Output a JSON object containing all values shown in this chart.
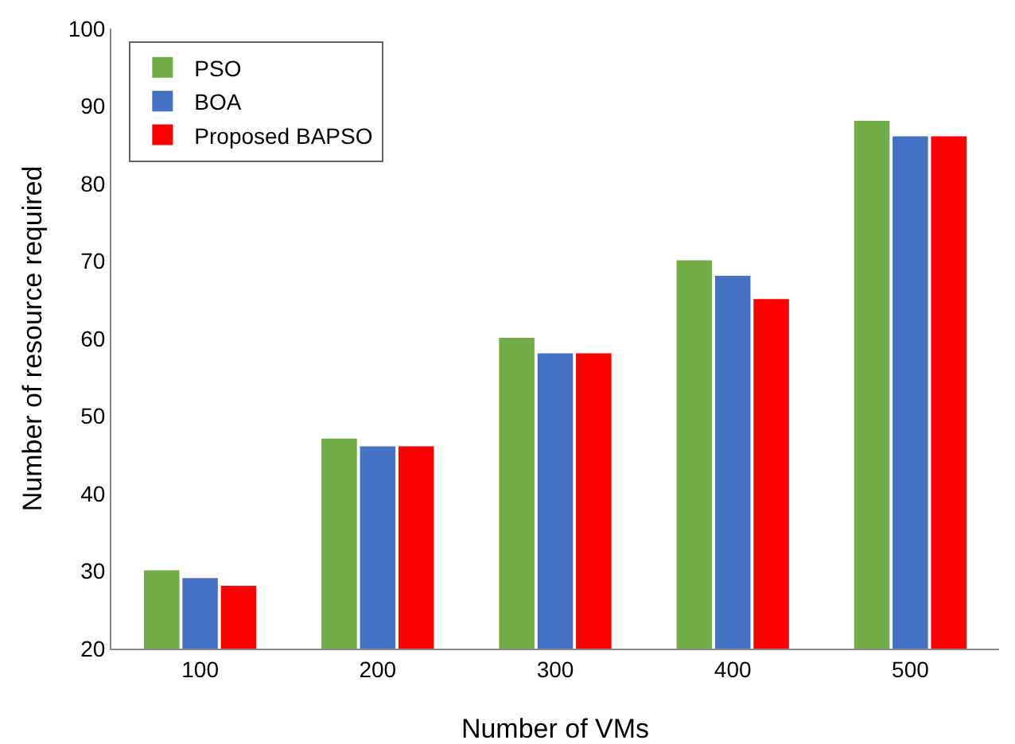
{
  "chart_data": {
    "type": "bar",
    "xlabel": "Number of VMs",
    "ylabel": "Number of resource required",
    "categories": [
      "100",
      "200",
      "300",
      "400",
      "500"
    ],
    "series": [
      {
        "name": "PSO",
        "color": "#70ad47",
        "values": [
          30,
          47,
          60,
          70,
          88
        ]
      },
      {
        "name": "BOA",
        "color": "#4472c4",
        "values": [
          29,
          46,
          58,
          68,
          86
        ]
      },
      {
        "name": "Proposed BAPSO",
        "color": "#ff0000",
        "values": [
          28,
          46,
          58,
          65,
          86
        ]
      }
    ],
    "ylim": [
      20,
      100
    ],
    "yticks": [
      20,
      30,
      40,
      50,
      60,
      70,
      80,
      90,
      100
    ],
    "grid": false,
    "legend": "top left"
  }
}
